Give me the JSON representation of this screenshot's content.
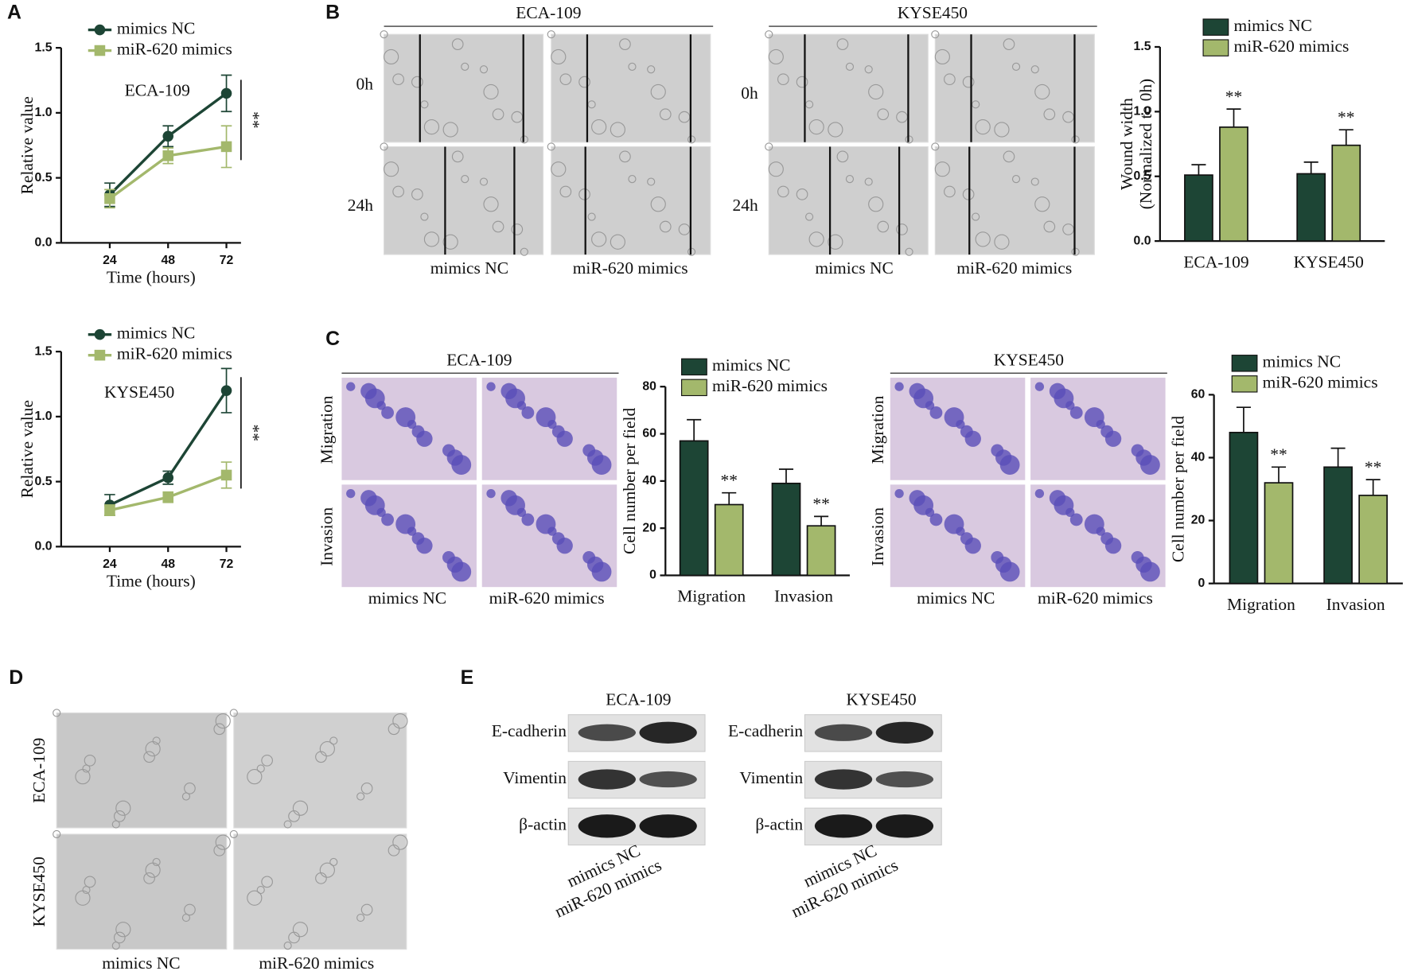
{
  "panel_labels": [
    "A",
    "B",
    "C",
    "D",
    "E"
  ],
  "wound": {
    "cell_lines": [
      "ECA-109",
      "KYSE450"
    ],
    "times": [
      "0h",
      "24h"
    ],
    "groups": [
      "mimics NC",
      "miR-620 mimics"
    ]
  },
  "transwell": {
    "cell_lines": [
      "ECA-109",
      "KYSE450"
    ],
    "rows": [
      "Migration",
      "Invasion"
    ],
    "groups": [
      "mimics NC",
      "miR-620 mimics"
    ]
  },
  "morphology": {
    "cell_lines": [
      "ECA-109",
      "KYSE450"
    ],
    "groups": [
      "mimics NC",
      "miR-620 mimics"
    ]
  },
  "western": {
    "cell_lines": [
      "ECA-109",
      "KYSE450"
    ],
    "proteins": [
      "E-cadherin",
      "Vimentin",
      "β-actin"
    ],
    "groups": [
      "mimics NC",
      "miR-620 mimics"
    ]
  },
  "chart_data": [
    {
      "type": "line",
      "annotation": "ECA-109",
      "x_label": "Time (hours)",
      "y_label": "Relative value",
      "x": [
        24,
        48,
        72
      ],
      "xlim": [
        4,
        78
      ],
      "xticks": [
        24,
        48,
        72
      ],
      "ylim": [
        0,
        1.5
      ],
      "yticks": [
        {
          "value": 0,
          "label": "0.0"
        },
        0.5,
        {
          "value": 1,
          "label": "1.0"
        },
        1.5
      ],
      "significance": "**",
      "series": [
        {
          "name": "mimics NC",
          "color": "#1d4535",
          "marker": "circle",
          "values": [
            0.37,
            0.82,
            1.15
          ],
          "errors": [
            0.09,
            0.08,
            0.14
          ]
        },
        {
          "name": "miR-620 mimics",
          "color": "#a3b86c",
          "marker": "square",
          "values": [
            0.34,
            0.67,
            0.74
          ],
          "errors": [
            0.07,
            0.06,
            0.16
          ]
        }
      ]
    },
    {
      "type": "line",
      "annotation": "KYSE450",
      "x_label": "Time (hours)",
      "y_label": "Relative value",
      "x": [
        24,
        48,
        72
      ],
      "xlim": [
        4,
        78
      ],
      "xticks": [
        24,
        48,
        72
      ],
      "ylim": [
        0,
        1.5
      ],
      "yticks": [
        {
          "value": 0,
          "label": "0.0"
        },
        0.5,
        {
          "value": 1,
          "label": "1.0"
        },
        1.5
      ],
      "significance": "**",
      "series": [
        {
          "name": "mimics NC",
          "color": "#1d4535",
          "marker": "circle",
          "values": [
            0.32,
            0.53,
            1.2
          ],
          "errors": [
            0.08,
            0.05,
            0.17
          ]
        },
        {
          "name": "miR-620 mimics",
          "color": "#a3b86c",
          "marker": "square",
          "values": [
            0.28,
            0.38,
            0.55
          ],
          "errors": [
            0.04,
            0.04,
            0.1
          ]
        }
      ]
    },
    {
      "type": "bar",
      "y_label": [
        "Wound width",
        "(Normalized to 0h)"
      ],
      "categories": [
        "ECA-109",
        "KYSE450"
      ],
      "ylim": [
        0,
        1.5
      ],
      "yticks": [
        {
          "value": 0,
          "label": "0.0"
        },
        0.5,
        {
          "value": 1,
          "label": "1.0"
        },
        1.5
      ],
      "series": [
        {
          "name": "mimics NC",
          "color": "#1d4535",
          "values": [
            0.51,
            0.52
          ],
          "errors": [
            0.08,
            0.09
          ]
        },
        {
          "name": "miR-620 mimics",
          "color": "#a3b86c",
          "values": [
            0.88,
            0.74
          ],
          "errors": [
            0.14,
            0.12
          ],
          "annotations": [
            "**",
            "**"
          ]
        }
      ]
    },
    {
      "type": "bar",
      "y_label": "Cell number per field",
      "categories": [
        "Migration",
        "Invasion"
      ],
      "ylim": [
        0,
        80
      ],
      "yticks": [
        0,
        20,
        40,
        60,
        80
      ],
      "series": [
        {
          "name": "mimics NC",
          "color": "#1d4535",
          "values": [
            57,
            39
          ],
          "errors": [
            9,
            6
          ]
        },
        {
          "name": "miR-620 mimics",
          "color": "#a3b86c",
          "values": [
            30,
            21
          ],
          "errors": [
            5,
            4
          ],
          "annotations": [
            "**",
            "**"
          ]
        }
      ]
    },
    {
      "type": "bar",
      "y_label": "Cell number per field",
      "categories": [
        "Migration",
        "Invasion"
      ],
      "ylim": [
        0,
        60
      ],
      "yticks": [
        0,
        20,
        40,
        60
      ],
      "series": [
        {
          "name": "mimics NC",
          "color": "#1d4535",
          "values": [
            48,
            37
          ],
          "errors": [
            8,
            6
          ]
        },
        {
          "name": "miR-620 mimics",
          "color": "#a3b86c",
          "values": [
            32,
            28
          ],
          "errors": [
            5,
            5
          ],
          "annotations": [
            "**",
            "**"
          ]
        }
      ]
    }
  ]
}
